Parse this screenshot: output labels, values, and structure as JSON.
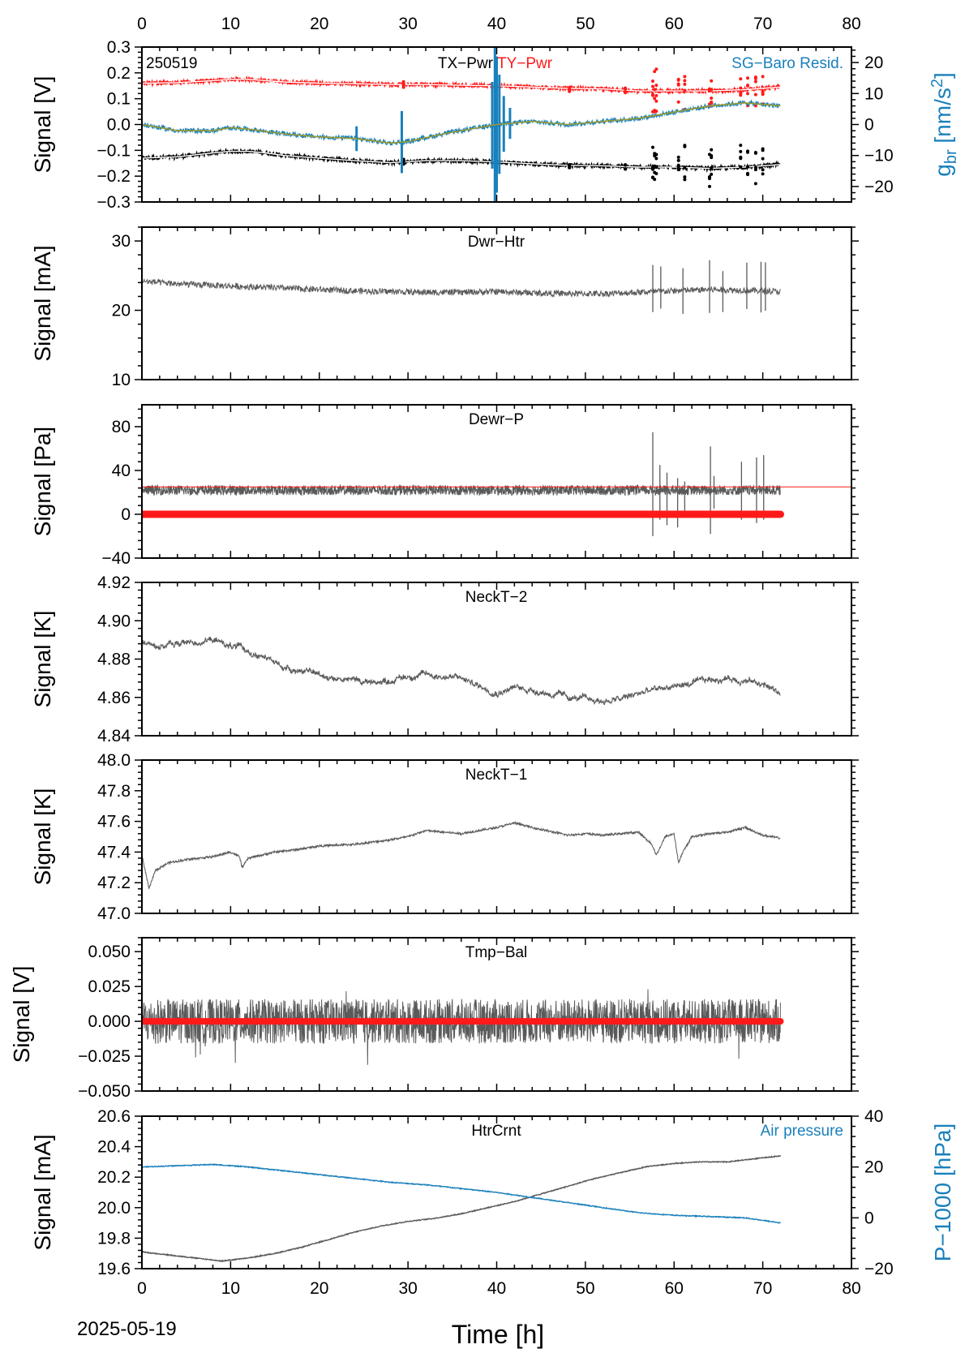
{
  "figure": {
    "date": "2025-05-19",
    "station_code": "250519",
    "x_label": "Time [h]",
    "x_ticks": [
      "0",
      "10",
      "20",
      "30",
      "40",
      "50",
      "60",
      "70",
      "80"
    ]
  },
  "colors": {
    "black": "#000000",
    "red": "#ff1a1a",
    "blue": "#1a80bb",
    "gray": "#5a5a5a",
    "olive": "#9a9a30"
  },
  "chart_data": [
    {
      "type": "line",
      "title": "",
      "labels": [
        "TX−Pwr",
        "TY−Pwr",
        "SG−Baro Resid."
      ],
      "ylabel": "Signal [V]",
      "ylabel_right": "g_br [nm/s²]",
      "ylabel_right_main": "g",
      "ylabel_right_sub": "br",
      "ylabel_right_rest": " [nm/s",
      "ylabel_right_sup": "2",
      "ylabel_right_end": "]",
      "xlim": [
        0,
        80
      ],
      "ylim": [
        -0.3,
        0.3
      ],
      "ylim_right": [
        -25,
        25
      ],
      "yticks": [
        "0.3",
        "0.2",
        "0.1",
        "0.0",
        "−0.1",
        "−0.2",
        "−0.3"
      ],
      "yticks_right": [
        "20",
        "10",
        "0",
        "−10",
        "−20"
      ],
      "grid": false,
      "series": [
        {
          "name": "TX−Pwr",
          "axis": "left",
          "color": "black",
          "x": [
            0,
            4,
            8,
            10,
            12,
            14,
            16,
            20,
            24,
            28,
            32,
            36,
            40,
            44,
            48,
            52,
            56,
            60,
            64,
            68,
            72
          ],
          "y": [
            -0.13,
            -0.125,
            -0.11,
            -0.104,
            -0.104,
            -0.11,
            -0.12,
            -0.13,
            -0.14,
            -0.148,
            -0.14,
            -0.14,
            -0.145,
            -0.152,
            -0.158,
            -0.16,
            -0.165,
            -0.165,
            -0.17,
            -0.165,
            -0.155
          ]
        },
        {
          "name": "TY−Pwr",
          "axis": "left",
          "color": "red",
          "x": [
            0,
            4,
            8,
            10,
            12,
            14,
            16,
            20,
            24,
            28,
            32,
            36,
            40,
            44,
            48,
            52,
            56,
            60,
            64,
            68,
            72
          ],
          "y": [
            0.16,
            0.162,
            0.17,
            0.175,
            0.175,
            0.17,
            0.165,
            0.16,
            0.158,
            0.155,
            0.155,
            0.152,
            0.15,
            0.145,
            0.14,
            0.138,
            0.13,
            0.13,
            0.13,
            0.135,
            0.145
          ]
        },
        {
          "name": "SG−Baro Resid.",
          "axis": "right",
          "color": "blue",
          "x": [
            0,
            4,
            8,
            10,
            12,
            16,
            20,
            24,
            28,
            30,
            34,
            38,
            40,
            44,
            48,
            52,
            56,
            60,
            64,
            68,
            72
          ],
          "y": [
            0,
            -2,
            -2,
            -1,
            -1.5,
            -3,
            -4,
            -4.5,
            -6,
            -5.5,
            -3,
            -1,
            0,
            1,
            0,
            1,
            2,
            4,
            6,
            7,
            6
          ]
        }
      ]
    },
    {
      "type": "line",
      "title": "Dwr−Htr",
      "ylabel": "Signal [mA]",
      "xlim": [
        0,
        80
      ],
      "ylim": [
        10,
        32
      ],
      "yticks": [
        "30",
        "20",
        "10"
      ],
      "grid": false,
      "series": [
        {
          "color": "gray",
          "x": [
            0,
            4,
            8,
            12,
            16,
            20,
            24,
            28,
            32,
            36,
            40,
            44,
            48,
            52,
            56,
            60,
            64,
            68,
            72
          ],
          "y": [
            24.2,
            23.8,
            23.6,
            23.4,
            23.2,
            23.0,
            22.8,
            22.7,
            22.6,
            22.6,
            22.7,
            22.5,
            22.4,
            22.4,
            22.6,
            22.8,
            23.0,
            22.9,
            22.7
          ]
        }
      ]
    },
    {
      "type": "line",
      "title": "Dewr−P",
      "ylabel": "Signal [Pa]",
      "xlim": [
        0,
        80
      ],
      "ylim": [
        -40,
        100
      ],
      "yticks": [
        "80",
        "40",
        "0",
        "−40"
      ],
      "grid": false,
      "series": [
        {
          "color": "gray",
          "x": [
            0,
            72
          ],
          "y": [
            22,
            22
          ]
        },
        {
          "color": "red",
          "x": [
            0,
            72
          ],
          "y": [
            0,
            0
          ]
        },
        {
          "color": "red",
          "x": [
            0,
            80
          ],
          "y": [
            25,
            25
          ]
        }
      ]
    },
    {
      "type": "line",
      "title": "NeckT−2",
      "ylabel": "Signal [K]",
      "xlim": [
        0,
        80
      ],
      "ylim": [
        4.84,
        4.92
      ],
      "yticks": [
        "4.92",
        "4.90",
        "4.88",
        "4.86",
        "4.84"
      ],
      "grid": false,
      "series": [
        {
          "color": "gray",
          "x": [
            0,
            2,
            4,
            6,
            8,
            10,
            12,
            14,
            16,
            18,
            20,
            22,
            24,
            26,
            28,
            30,
            32,
            34,
            36,
            38,
            40,
            42,
            44,
            46,
            48,
            50,
            52,
            54,
            56,
            58,
            60,
            62,
            64,
            66,
            68,
            70,
            72
          ],
          "y": [
            4.889,
            4.887,
            4.888,
            4.889,
            4.89,
            4.887,
            4.884,
            4.88,
            4.876,
            4.874,
            4.872,
            4.87,
            4.869,
            4.868,
            4.869,
            4.871,
            4.872,
            4.871,
            4.87,
            4.866,
            4.863,
            4.865,
            4.864,
            4.862,
            4.86,
            4.859,
            4.858,
            4.859,
            4.862,
            4.864,
            4.866,
            4.867,
            4.869,
            4.87,
            4.869,
            4.867,
            4.862
          ]
        }
      ]
    },
    {
      "type": "line",
      "title": "NeckT−1",
      "ylabel": "Signal [K]",
      "xlim": [
        0,
        80
      ],
      "ylim": [
        47.0,
        48.0
      ],
      "yticks": [
        "48.0",
        "47.8",
        "47.6",
        "47.4",
        "47.2",
        "47.0"
      ],
      "grid": false,
      "series": [
        {
          "color": "gray",
          "x": [
            0,
            0.8,
            1.5,
            3,
            5,
            8,
            10,
            11,
            11.3,
            12,
            15,
            18,
            20,
            24,
            28,
            30,
            32,
            36,
            40,
            42,
            44,
            48,
            50,
            52,
            54,
            56,
            57.5,
            58,
            59,
            60,
            60.5,
            61,
            62,
            64,
            66,
            68,
            70,
            72
          ],
          "y": [
            47.38,
            47.16,
            47.28,
            47.33,
            47.35,
            47.37,
            47.4,
            47.37,
            47.3,
            47.36,
            47.4,
            47.42,
            47.44,
            47.45,
            47.48,
            47.5,
            47.54,
            47.52,
            47.56,
            47.59,
            47.56,
            47.51,
            47.52,
            47.51,
            47.52,
            47.53,
            47.45,
            47.38,
            47.5,
            47.52,
            47.33,
            47.4,
            47.5,
            47.52,
            47.53,
            47.56,
            47.51,
            47.49
          ]
        }
      ]
    },
    {
      "type": "line",
      "title": "Tmp−Bal",
      "ylabel": "Signal [V]",
      "xlim": [
        0,
        80
      ],
      "ylim": [
        -0.05,
        0.06
      ],
      "yticks": [
        "0.050",
        "0.025",
        "0.000",
        "−0.025",
        "−0.050"
      ],
      "grid": false,
      "series": [
        {
          "color": "gray",
          "x": [
            0,
            72
          ],
          "y": [
            0,
            0
          ]
        },
        {
          "color": "red",
          "x": [
            0,
            72
          ],
          "y": [
            0,
            0
          ]
        }
      ]
    },
    {
      "type": "line",
      "title": "HtrCrnt",
      "labels": [
        "Air pressure"
      ],
      "ylabel": "Signal [mA]",
      "ylabel_right": "P−1000 [hPa]",
      "xlim": [
        0,
        80
      ],
      "ylim": [
        19.6,
        20.6
      ],
      "ylim_right": [
        -20,
        40
      ],
      "yticks": [
        "20.6",
        "20.4",
        "20.2",
        "20.0",
        "19.8",
        "19.6"
      ],
      "yticks_right": [
        "40",
        "20",
        "0",
        "−20"
      ],
      "grid": false,
      "series": [
        {
          "color": "gray",
          "axis": "left",
          "x": [
            0,
            3,
            6,
            9,
            12,
            15,
            18,
            21,
            24,
            27,
            30,
            33,
            36,
            39,
            42,
            45,
            48,
            51,
            54,
            57,
            60,
            63,
            66,
            69,
            72
          ],
          "y": [
            19.71,
            19.69,
            19.67,
            19.65,
            19.67,
            19.7,
            19.74,
            19.79,
            19.84,
            19.88,
            19.91,
            19.93,
            19.96,
            20.0,
            20.04,
            20.09,
            20.14,
            20.19,
            20.23,
            20.27,
            20.29,
            20.3,
            20.3,
            20.32,
            20.34
          ]
        },
        {
          "name": "Air pressure",
          "color": "blue",
          "axis": "right",
          "x": [
            0,
            4,
            8,
            12,
            16,
            20,
            24,
            28,
            32,
            36,
            40,
            44,
            48,
            52,
            56,
            60,
            64,
            68,
            70,
            72
          ],
          "y": [
            20,
            20.5,
            21,
            20,
            18.5,
            17,
            15.5,
            14,
            13,
            11.5,
            10,
            8,
            6,
            4,
            2,
            1,
            0.5,
            0,
            -1,
            -2
          ]
        }
      ]
    }
  ]
}
